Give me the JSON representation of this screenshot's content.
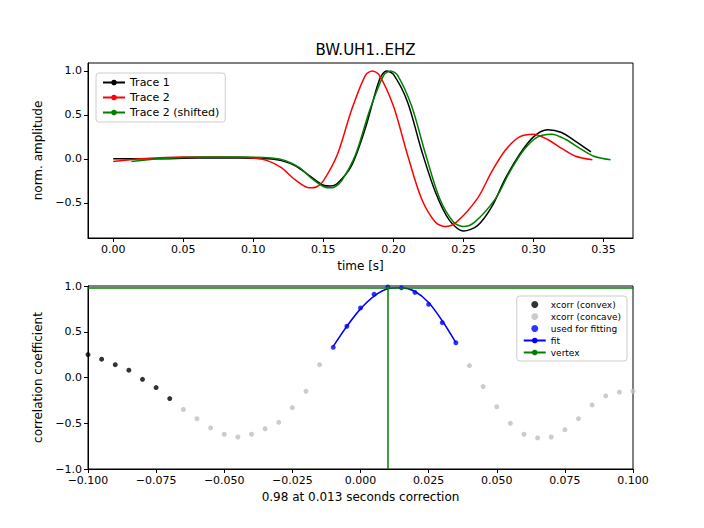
{
  "chart_data": [
    {
      "type": "line",
      "title": "BW.UH1..EHZ",
      "xlabel": "time [s]",
      "ylabel": "norm. amplitude",
      "xlim": [
        -0.018,
        0.371
      ],
      "ylim": [
        -0.9,
        1.09
      ],
      "xticks": [
        {
          "value": 0,
          "label": "0.00"
        },
        {
          "value": 0.05,
          "label": "0.05"
        },
        {
          "value": 0.1,
          "label": "0.10"
        },
        {
          "value": 0.15,
          "label": "0.15"
        },
        {
          "value": 0.2,
          "label": "0.20"
        },
        {
          "value": 0.25,
          "label": "0.25"
        },
        {
          "value": 0.3,
          "label": "0.30"
        },
        {
          "value": 0.35,
          "label": "0.35"
        }
      ],
      "yticks": [
        {
          "value": -0.5,
          "label": "−0.5"
        },
        {
          "value": 0,
          "label": "0.0"
        },
        {
          "value": 0.5,
          "label": "0.5"
        },
        {
          "value": 1,
          "label": "1.0"
        }
      ],
      "grid": false,
      "legend": "upper left",
      "series": [
        {
          "name": "Trace 1",
          "color": "#000000",
          "type": "line",
          "line_style": "solid",
          "x": [
            0,
            0.03,
            0.06,
            0.09,
            0.11,
            0.12,
            0.13,
            0.14,
            0.15,
            0.155,
            0.16,
            0.17,
            0.18,
            0.19,
            0.195,
            0.2,
            0.21,
            0.22,
            0.23,
            0.24,
            0.25,
            0.26,
            0.27,
            0.28,
            0.29,
            0.3,
            0.31,
            0.32,
            0.33,
            0.341
          ],
          "values": [
            0,
            0.0,
            0.01,
            0.01,
            0.0,
            -0.02,
            -0.08,
            -0.19,
            -0.3,
            -0.31,
            -0.28,
            -0.08,
            0.35,
            0.9,
            1.0,
            0.96,
            0.65,
            0.1,
            -0.38,
            -0.7,
            -0.82,
            -0.76,
            -0.55,
            -0.22,
            0.05,
            0.25,
            0.33,
            0.3,
            0.2,
            0.08
          ]
        },
        {
          "name": "Trace 2",
          "color": "#ff0000",
          "type": "line",
          "line_style": "solid",
          "x": [
            0,
            0.02,
            0.05,
            0.08,
            0.1,
            0.11,
            0.12,
            0.13,
            0.14,
            0.145,
            0.15,
            0.16,
            0.17,
            0.18,
            0.185,
            0.19,
            0.2,
            0.21,
            0.22,
            0.23,
            0.237,
            0.245,
            0.26,
            0.27,
            0.28,
            0.29,
            0.3,
            0.31,
            0.32,
            0.33,
            0.342
          ],
          "values": [
            -0.03,
            0.0,
            0.02,
            0.02,
            0.01,
            -0.02,
            -0.1,
            -0.24,
            -0.33,
            -0.32,
            -0.25,
            0.05,
            0.55,
            0.95,
            1.0,
            0.95,
            0.6,
            0.05,
            -0.45,
            -0.72,
            -0.77,
            -0.72,
            -0.45,
            -0.15,
            0.1,
            0.25,
            0.28,
            0.22,
            0.12,
            0.03,
            -0.01
          ]
        },
        {
          "name": "Trace 2 (shifted)",
          "color": "#008000",
          "type": "line",
          "line_style": "solid",
          "x": [
            0.013,
            0.033,
            0.063,
            0.093,
            0.113,
            0.123,
            0.133,
            0.143,
            0.153,
            0.158,
            0.163,
            0.173,
            0.183,
            0.193,
            0.198,
            0.203,
            0.213,
            0.223,
            0.233,
            0.243,
            0.25,
            0.258,
            0.273,
            0.283,
            0.293,
            0.303,
            0.313,
            0.323,
            0.333,
            0.343,
            0.355
          ],
          "values": [
            -0.03,
            0.0,
            0.02,
            0.02,
            0.01,
            -0.02,
            -0.1,
            -0.24,
            -0.33,
            -0.32,
            -0.25,
            0.05,
            0.55,
            0.95,
            1.0,
            0.95,
            0.6,
            0.05,
            -0.45,
            -0.72,
            -0.77,
            -0.72,
            -0.45,
            -0.15,
            0.1,
            0.25,
            0.28,
            0.22,
            0.12,
            0.03,
            -0.01
          ]
        }
      ]
    },
    {
      "type": "scatter",
      "xlabel": "0.98 at 0.013 seconds correction",
      "ylabel": "correlation coefficient",
      "xlim": [
        -0.1,
        0.1
      ],
      "ylim": [
        -1,
        1
      ],
      "xticks": [
        {
          "value": -0.1,
          "label": "−0.100"
        },
        {
          "value": -0.075,
          "label": "−0.075"
        },
        {
          "value": -0.05,
          "label": "−0.050"
        },
        {
          "value": -0.025,
          "label": "−0.025"
        },
        {
          "value": 0,
          "label": "0.000"
        },
        {
          "value": 0.025,
          "label": "0.025"
        },
        {
          "value": 0.05,
          "label": "0.050"
        },
        {
          "value": 0.075,
          "label": "0.075"
        },
        {
          "value": 0.1,
          "label": "0.100"
        }
      ],
      "yticks": [
        {
          "value": -1,
          "label": "−1.0"
        },
        {
          "value": -0.5,
          "label": "−0.5"
        },
        {
          "value": 0,
          "label": "0.0"
        },
        {
          "value": 0.5,
          "label": "0.5"
        },
        {
          "value": 1,
          "label": "1.0"
        }
      ],
      "grid": false,
      "legend": "upper right",
      "series": [
        {
          "name": "xcorr (convex)",
          "color": "#000000",
          "type": "scatter",
          "marker": "o",
          "x": [
            -0.1,
            -0.095,
            -0.09,
            -0.085,
            -0.08,
            -0.075,
            -0.07
          ],
          "values": [
            0.25,
            0.2,
            0.14,
            0.08,
            -0.02,
            -0.11,
            -0.23
          ]
        },
        {
          "name": "xcorr (concave)",
          "color": "#bfbfbf",
          "type": "scatter",
          "marker": "o",
          "x": [
            -0.065,
            -0.06,
            -0.055,
            -0.05,
            -0.045,
            -0.04,
            -0.035,
            -0.03,
            -0.025,
            -0.02,
            -0.015,
            0.04,
            0.045,
            0.05,
            0.055,
            0.06,
            0.065,
            0.07,
            0.075,
            0.08,
            0.085,
            0.09,
            0.095,
            0.1
          ],
          "values": [
            -0.35,
            -0.45,
            -0.55,
            -0.62,
            -0.65,
            -0.62,
            -0.56,
            -0.49,
            -0.33,
            -0.15,
            0.14,
            0.13,
            -0.1,
            -0.32,
            -0.5,
            -0.62,
            -0.66,
            -0.65,
            -0.57,
            -0.45,
            -0.3,
            -0.2,
            -0.16,
            -0.15
          ]
        },
        {
          "name": "used for fitting",
          "color": "#0000ff",
          "type": "scatter",
          "marker": "o",
          "x": [
            -0.01,
            -0.005,
            0,
            0.005,
            0.01,
            0.015,
            0.02,
            0.025,
            0.03,
            0.035
          ],
          "values": [
            0.33,
            0.56,
            0.76,
            0.91,
            0.99,
            0.98,
            0.93,
            0.8,
            0.6,
            0.38
          ]
        },
        {
          "name": "fit",
          "color": "#0000ff",
          "type": "line",
          "line_style": "solid",
          "x": [
            -0.01,
            -0.005,
            0,
            0.005,
            0.01,
            0.015,
            0.02,
            0.025,
            0.03,
            0.035
          ],
          "values": [
            0.34,
            0.56,
            0.75,
            0.89,
            0.97,
            0.98,
            0.94,
            0.82,
            0.62,
            0.38
          ]
        },
        {
          "name": "vertex",
          "color": "#008000",
          "type": "vertex",
          "line_style": "solid",
          "x": [
            0.013
          ],
          "values": [
            0.98
          ]
        }
      ]
    }
  ]
}
